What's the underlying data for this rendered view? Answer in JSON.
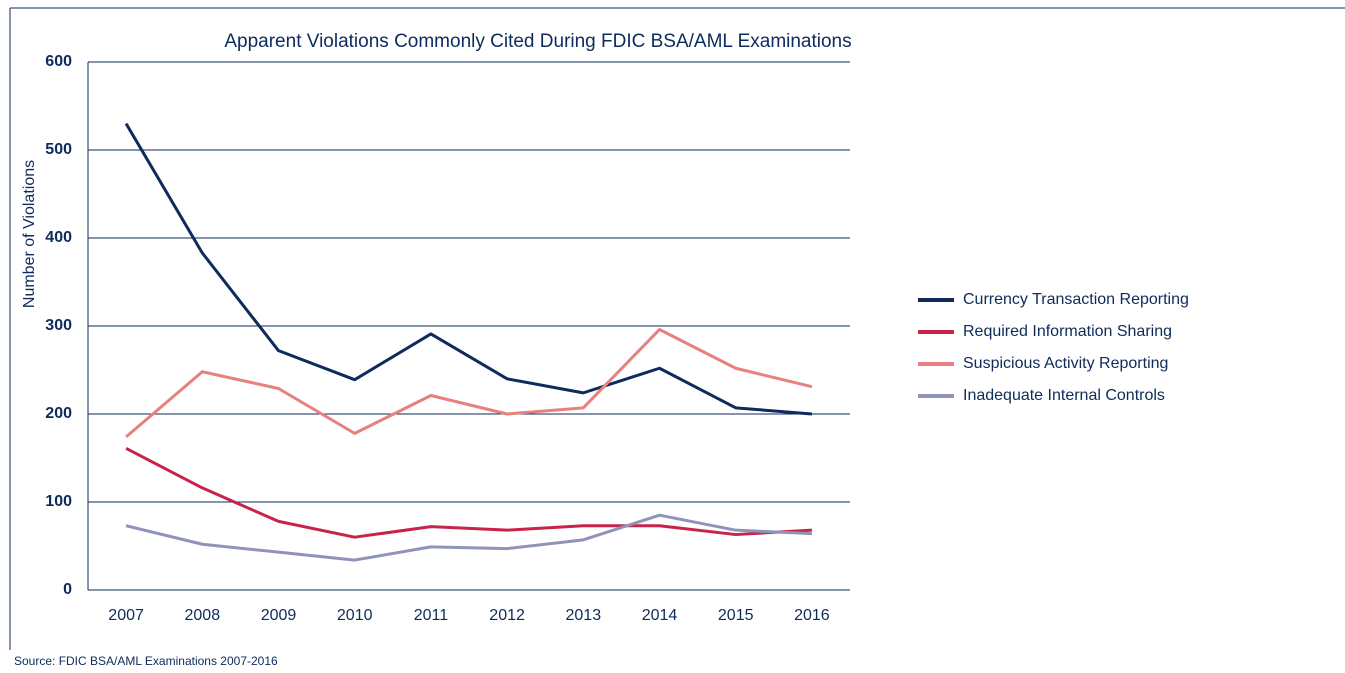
{
  "chart_data": {
    "type": "line",
    "title": "Apparent Violations Commonly Cited During FDIC BSA/AML Examinations",
    "ylabel": "Number of Violations",
    "source": "Source: FDIC BSA/AML Examinations 2007-2016",
    "categories": [
      "2007",
      "2008",
      "2009",
      "2010",
      "2011",
      "2012",
      "2013",
      "2014",
      "2015",
      "2016"
    ],
    "series": [
      {
        "name": "Currency Transaction Reporting",
        "color": "#0d2b5b",
        "values": [
          530,
          383,
          272,
          239,
          291,
          240,
          224,
          252,
          207,
          200
        ]
      },
      {
        "name": "Required Information Sharing",
        "color": "#c8234a",
        "values": [
          161,
          116,
          78,
          60,
          72,
          68,
          73,
          73,
          63,
          68
        ]
      },
      {
        "name": "Suspicious Activity Reporting",
        "color": "#e8807e",
        "values": [
          174,
          248,
          229,
          178,
          221,
          200,
          207,
          296,
          252,
          231
        ]
      },
      {
        "name": "Inadequate Internal Controls",
        "color": "#8f93b9",
        "values": [
          73,
          52,
          43,
          34,
          49,
          47,
          57,
          85,
          68,
          64
        ]
      }
    ],
    "ylim": [
      0,
      600
    ],
    "yticks": [
      0,
      100,
      200,
      300,
      400,
      500,
      600
    ],
    "grid": true,
    "legend": "right"
  }
}
